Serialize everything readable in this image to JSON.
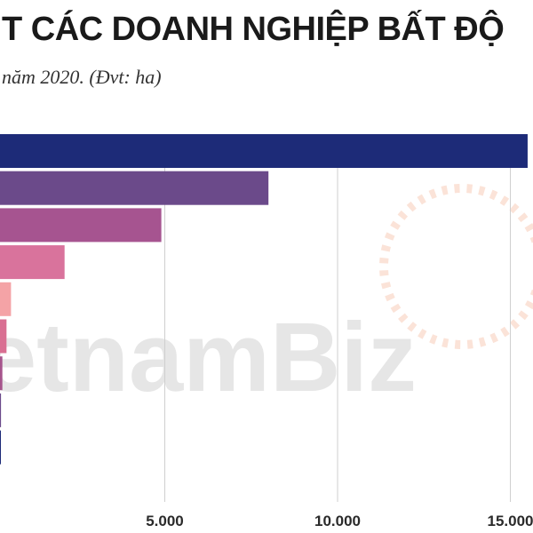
{
  "header": {
    "title": "T CÁC DOANH NGHIỆP BẤT ĐỘ",
    "subtitle": "năm 2020. (Đvt: ha)"
  },
  "watermark": {
    "text": "etnamBiz"
  },
  "colors": {
    "title": "#1a1a1a",
    "grid": "#cfcfcf",
    "watermark_dark": "#e6e6e6",
    "watermark_accent": "#fbe3d8"
  },
  "chart_data": {
    "type": "bar",
    "orientation": "horizontal",
    "title": "T CÁC DOANH NGHIỆP BẤT ĐỘ",
    "subtitle": "năm 2020. (Đvt: ha)",
    "xlim": [
      0,
      15500
    ],
    "x_ticks": [
      5000,
      10000,
      15000
    ],
    "x_tick_labels": [
      "5.000",
      "10.000",
      "15.000"
    ],
    "grid": true,
    "bars": [
      {
        "value": 15500,
        "color": "#1d2b78"
      },
      {
        "value": 8000,
        "color": "#6b4a8a"
      },
      {
        "value": 4900,
        "color": "#a65490"
      },
      {
        "value": 2100,
        "color": "#d9739c"
      },
      {
        "value": 550,
        "color": "#f4a3a6"
      },
      {
        "value": 420,
        "color": "#d96f92"
      },
      {
        "value": 300,
        "color": "#a6548c"
      },
      {
        "value": 260,
        "color": "#6b4a8a"
      },
      {
        "value": 170,
        "color": "#1d2b78"
      }
    ]
  }
}
